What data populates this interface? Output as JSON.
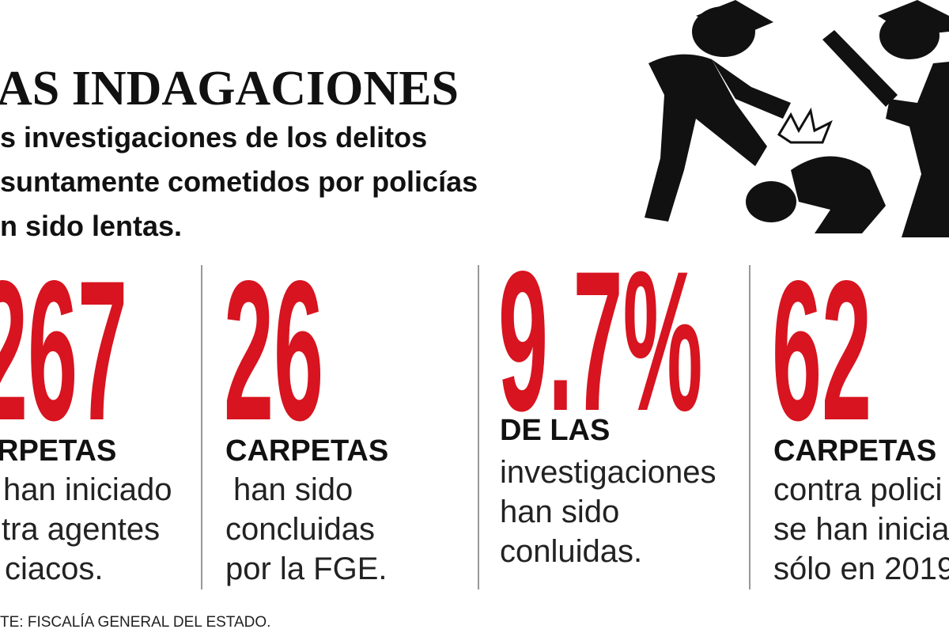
{
  "header": {
    "title": "AS INDAGACIONES",
    "subtitle": [
      "s investigaciones de los delitos",
      "suntamente cometidos por policías",
      "n sido lentas."
    ]
  },
  "stats": [
    {
      "number": "267",
      "label": "RPETAS",
      "description": [
        "han iniciado",
        "tra agentes",
        "ciacos."
      ]
    },
    {
      "number": "26",
      "label": "CARPETAS",
      "description": [
        "han sido",
        "concluidas",
        "por la FGE."
      ]
    },
    {
      "number": "9.7%",
      "label": "DE LAS",
      "description": [
        "investigaciones",
        "han sido",
        "conluidas."
      ]
    },
    {
      "number": "62",
      "label": "CARPETAS",
      "description": [
        "contra polici",
        "se han inicia",
        "sólo en 2019"
      ]
    }
  ],
  "source": "TE: FISCALÍA GENERAL DEL ESTADO."
}
